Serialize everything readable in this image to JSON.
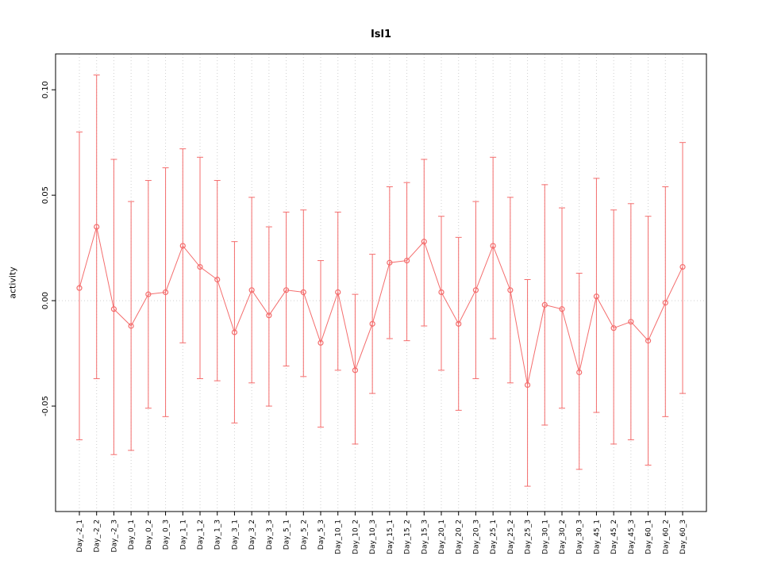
{
  "window": {
    "title": "Isl1"
  },
  "chart_data": {
    "type": "line",
    "title": "Isl1",
    "xlabel": "",
    "ylabel": "activity",
    "legend": "none",
    "grid": "vertical-dotted-per-category",
    "zero_line": true,
    "marker": "open-circle",
    "error_bars": true,
    "ylim": [
      -0.1,
      0.117
    ],
    "yticks": [
      -0.05,
      0.0,
      0.05,
      0.1
    ],
    "ytick_labels": [
      "-0.05",
      "0.00",
      "0.05",
      "0.10"
    ],
    "categories": [
      "Day_-2_1",
      "Day_-2_2",
      "Day_-2_3",
      "Day_0_1",
      "Day_0_2",
      "Day_0_3",
      "Day_1_1",
      "Day_1_2",
      "Day_1_3",
      "Day_3_1",
      "Day_3_2",
      "Day_3_3",
      "Day_5_1",
      "Day_5_2",
      "Day_5_3",
      "Day_10_1",
      "Day_10_2",
      "Day_10_3",
      "Day_15_1",
      "Day_15_2",
      "Day_15_3",
      "Day_20_1",
      "Day_20_2",
      "Day_20_3",
      "Day_25_1",
      "Day_25_2",
      "Day_25_3",
      "Day_30_1",
      "Day_30_2",
      "Day_30_3",
      "Day_45_1",
      "Day_45_2",
      "Day_45_3",
      "Day_60_1",
      "Day_60_2",
      "Day_60_3"
    ],
    "series": [
      {
        "name": "activity",
        "values": [
          0.006,
          0.035,
          -0.004,
          -0.012,
          0.003,
          0.004,
          0.026,
          0.016,
          0.01,
          -0.015,
          0.005,
          -0.007,
          0.005,
          0.004,
          -0.02,
          0.004,
          -0.033,
          -0.011,
          0.018,
          0.019,
          0.028,
          0.004,
          -0.011,
          0.005,
          0.026,
          0.005,
          -0.04,
          -0.002,
          -0.004,
          -0.034,
          0.002,
          -0.013,
          -0.01,
          -0.019,
          -0.001,
          0.016
        ],
        "error_upper": [
          0.08,
          0.107,
          0.067,
          0.047,
          0.057,
          0.063,
          0.072,
          0.068,
          0.057,
          0.028,
          0.049,
          0.035,
          0.042,
          0.043,
          0.019,
          0.042,
          0.003,
          0.022,
          0.054,
          0.056,
          0.067,
          0.04,
          0.03,
          0.047,
          0.068,
          0.049,
          0.01,
          0.055,
          0.044,
          0.013,
          0.058,
          0.043,
          0.046,
          0.04,
          0.054,
          0.075
        ],
        "error_lower": [
          -0.066,
          -0.037,
          -0.073,
          -0.071,
          -0.051,
          -0.055,
          -0.02,
          -0.037,
          -0.038,
          -0.058,
          -0.039,
          -0.05,
          -0.031,
          -0.036,
          -0.06,
          -0.033,
          -0.068,
          -0.044,
          -0.018,
          -0.019,
          -0.012,
          -0.033,
          -0.052,
          -0.037,
          -0.018,
          -0.039,
          -0.088,
          -0.059,
          -0.051,
          -0.08,
          -0.053,
          -0.068,
          -0.066,
          -0.078,
          -0.055,
          -0.044
        ]
      }
    ],
    "colors": {
      "series": "#f46d6d",
      "grid": "#cfcfcf",
      "zero_line": "#cfcfcf",
      "box": "#000000",
      "tick_text": "#000000",
      "background": "#ffffff"
    }
  }
}
